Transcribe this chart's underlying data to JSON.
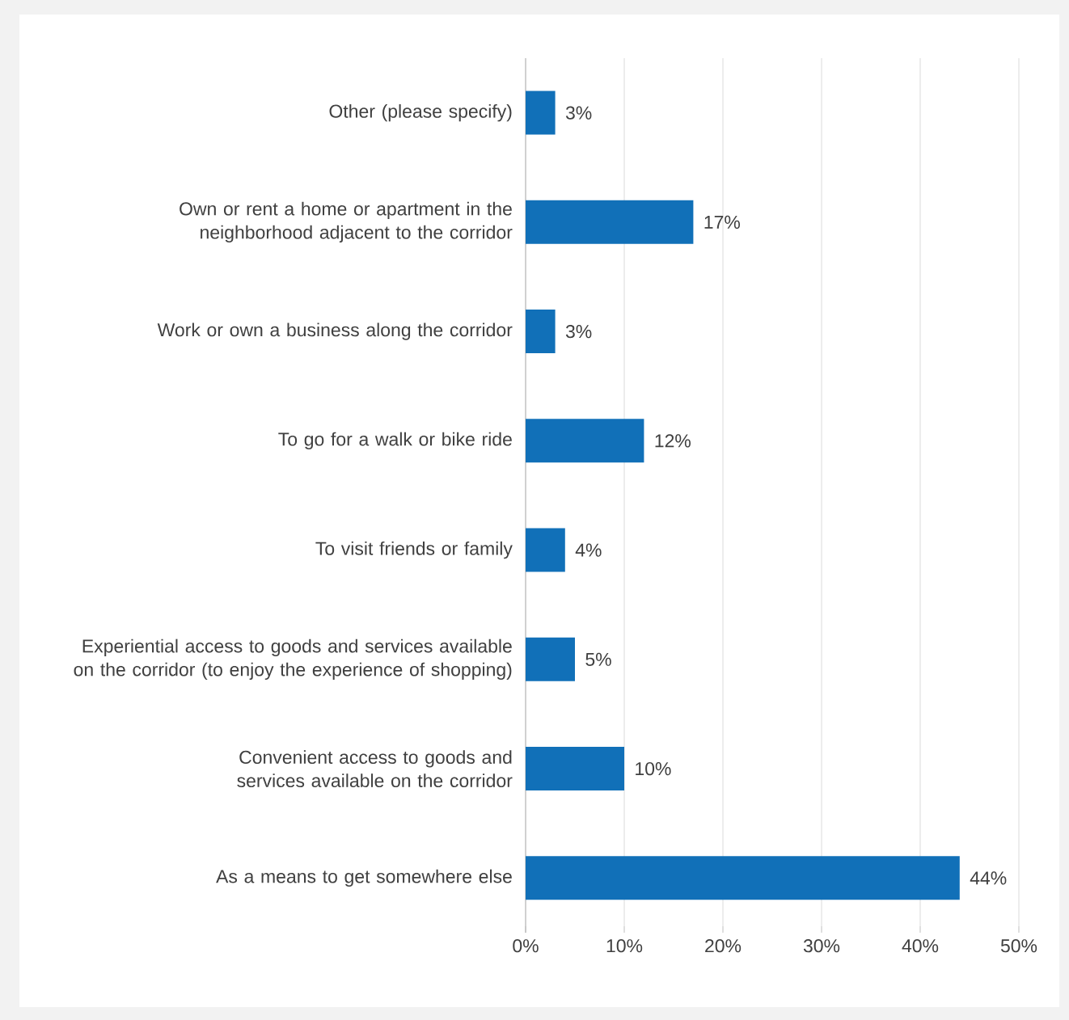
{
  "chart_data": {
    "type": "bar",
    "orientation": "horizontal",
    "categories": [
      "Other (please specify)",
      "Own or rent a home or apartment in the neighborhood adjacent to the corridor",
      "Work or own a business along the corridor",
      "To go for a walk or bike ride",
      "To visit friends or family",
      "Experiential access to goods and services available on the corridor (to enjoy the experience of shopping)",
      "Convenient access to goods and services available on the corridor",
      "As a means to get somewhere else"
    ],
    "values": [
      3,
      17,
      3,
      12,
      4,
      5,
      10,
      44
    ],
    "value_labels": [
      "3%",
      "17%",
      "3%",
      "12%",
      "4%",
      "5%",
      "10%",
      "44%"
    ],
    "color": "#1170b8",
    "xlim": [
      0,
      50
    ],
    "xticks": [
      {
        "value": 0,
        "label": "0%"
      },
      {
        "value": 10,
        "label": "10%"
      },
      {
        "value": 20,
        "label": "20%"
      },
      {
        "value": 30,
        "label": "30%"
      },
      {
        "value": 40,
        "label": "40%"
      },
      {
        "value": 50,
        "label": "50%"
      }
    ],
    "grid": "x"
  }
}
